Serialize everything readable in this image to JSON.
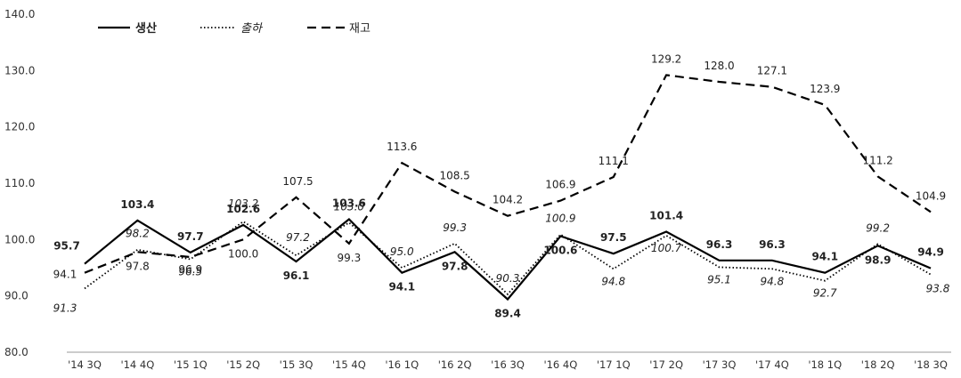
{
  "chart_data": {
    "type": "line",
    "categories": [
      "'14 3Q",
      "'14 4Q",
      "'15 1Q",
      "'15 2Q",
      "'15 3Q",
      "'15 4Q",
      "'16 1Q",
      "'16 2Q",
      "'16 3Q",
      "'16 4Q",
      "'17 1Q",
      "'17 2Q",
      "'17 3Q",
      "'17 4Q",
      "'18 1Q",
      "'18 2Q",
      "'18 3Q"
    ],
    "series": [
      {
        "name": "생산",
        "style": "solid",
        "values": [
          95.7,
          103.4,
          97.7,
          102.6,
          96.1,
          103.6,
          94.1,
          97.8,
          89.4,
          100.6,
          97.5,
          101.4,
          96.3,
          96.3,
          94.1,
          98.9,
          94.9
        ]
      },
      {
        "name": "출하",
        "style": "dotted",
        "values": [
          91.3,
          98.2,
          96.5,
          103.2,
          97.2,
          103.0,
          95.0,
          99.3,
          90.3,
          100.9,
          94.8,
          100.7,
          95.1,
          94.8,
          92.7,
          99.2,
          93.8
        ]
      },
      {
        "name": "재고",
        "style": "dashed",
        "values": [
          94.1,
          97.8,
          96.9,
          100.0,
          107.5,
          99.3,
          113.6,
          108.5,
          104.2,
          106.9,
          111.1,
          129.2,
          128.0,
          127.1,
          123.9,
          111.2,
          104.9
        ]
      }
    ],
    "y_ticks": [
      "140.0",
      "130.0",
      "120.0",
      "110.0",
      "100.0",
      "90.0",
      "80.0"
    ],
    "ylim": [
      80,
      140
    ],
    "grid": false,
    "legend": "top-left",
    "colors": {
      "line": "#000000",
      "text": "#222222",
      "axis": "#999999"
    }
  }
}
